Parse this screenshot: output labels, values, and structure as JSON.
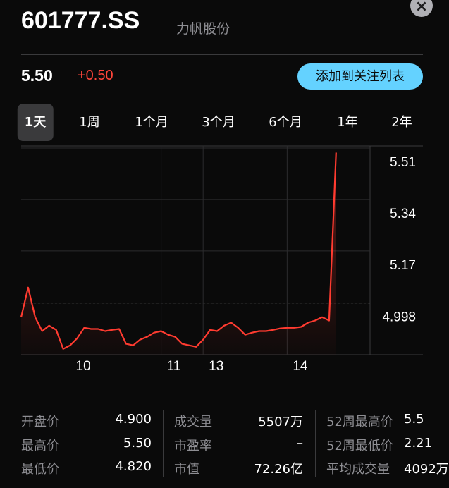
{
  "header": {
    "symbol": "601777.SS",
    "name": "力帆股份",
    "close": "×"
  },
  "quote": {
    "price": "5.50",
    "change": "+0.50",
    "watchlist_button": "添加到关注列表"
  },
  "tabs": {
    "items": [
      "1天",
      "1周",
      "1个月",
      "3个月",
      "6个月",
      "1年",
      "2年"
    ],
    "selected": 0
  },
  "chart_data": {
    "type": "line",
    "categories": [
      null,
      null,
      null,
      null,
      null,
      null,
      null,
      "10",
      null,
      null,
      null,
      null,
      null,
      null,
      null,
      null,
      null,
      null,
      null,
      null,
      "11",
      null,
      null,
      null,
      null,
      null,
      "13",
      null,
      null,
      null,
      null,
      null,
      null,
      null,
      null,
      null,
      null,
      null,
      "14",
      null,
      null,
      null,
      null,
      null,
      null,
      null
    ],
    "series": [
      {
        "color": "#ff3b30",
        "values": [
          4.951,
          5.049,
          4.951,
          4.905,
          4.923,
          4.909,
          4.846,
          4.858,
          4.881,
          4.916,
          4.912,
          4.912,
          4.905,
          4.909,
          4.912,
          4.863,
          4.858,
          4.877,
          4.886,
          4.9,
          4.905,
          4.893,
          4.886,
          4.863,
          4.858,
          4.853,
          4.877,
          4.909,
          4.905,
          4.923,
          4.933,
          4.916,
          4.893,
          4.9,
          4.905,
          4.905,
          4.909,
          4.914,
          4.916,
          4.916,
          4.919,
          4.933,
          4.94,
          4.951,
          4.94,
          5.495
        ]
      }
    ],
    "ylim": [
      4.827,
      5.51
    ],
    "yticks": [
      5.51,
      5.34,
      5.17,
      4.998
    ],
    "reference_line": 4.998,
    "grid": true
  },
  "stats": {
    "rows": [
      [
        "开盘价",
        "4.900",
        "成交量",
        "5507万",
        "52周最高价",
        "5.5"
      ],
      [
        "最高价",
        "5.50",
        "市盈率",
        "–",
        "52周最低价",
        "2.21"
      ],
      [
        "最低价",
        "4.820",
        "市值",
        "72.26亿",
        "平均成交量",
        "4092万"
      ]
    ]
  }
}
